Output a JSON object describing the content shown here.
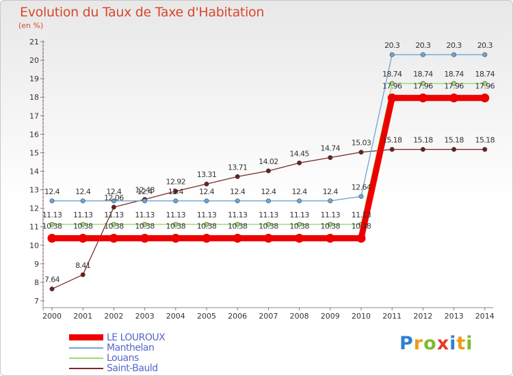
{
  "title": "Evolution du Taux de Taxe d'Habitation",
  "subtitle": "(en %)",
  "logo": {
    "letters": [
      "P",
      "r",
      "o",
      "x",
      "i",
      "t",
      "i"
    ],
    "colors": [
      "#2f7fd1",
      "#f09a17",
      "#7dbb2c",
      "#e33a2a",
      "#2f7fd1",
      "#f09a17",
      "#7dbb2c"
    ]
  },
  "chart_data": {
    "type": "line",
    "x": [
      2000,
      2001,
      2002,
      2003,
      2004,
      2005,
      2006,
      2007,
      2008,
      2009,
      2010,
      2011,
      2012,
      2013,
      2014
    ],
    "xlabel": "",
    "ylabel": "",
    "ylim": [
      7,
      21
    ],
    "yticks": [
      7,
      8,
      9,
      10,
      11,
      12,
      13,
      14,
      15,
      16,
      17,
      18,
      19,
      20,
      21
    ],
    "grid": false,
    "legend_position": "bottom-left",
    "series": [
      {
        "name": "LE LOUROUX",
        "color": "#ee0000",
        "values": [
          10.38,
          10.38,
          10.38,
          10.38,
          10.38,
          10.38,
          10.38,
          10.38,
          10.38,
          10.38,
          10.38,
          17.96,
          17.96,
          17.96,
          17.96
        ],
        "labels": [
          "10.38",
          "10.38",
          "10.38",
          "10.38",
          "10.38",
          "10.38",
          "10.38",
          "10.38",
          "10.38",
          "10.38",
          "10.38",
          "17.96",
          "17.96",
          "17.96",
          "17.96"
        ]
      },
      {
        "name": "Manthelan",
        "color": "#6aa6d8",
        "values": [
          12.4,
          12.4,
          12.4,
          12.4,
          12.4,
          12.4,
          12.4,
          12.4,
          12.4,
          12.4,
          12.64,
          20.3,
          20.3,
          20.3,
          20.3
        ],
        "labels": [
          "12.4",
          "12.4",
          "12.4",
          "12.4",
          "12.4",
          "12.4",
          "12.4",
          "12.4",
          "12.4",
          "12.4",
          "12.64",
          "20.3",
          "20.3",
          "20.3",
          "20.3"
        ]
      },
      {
        "name": "Louans",
        "color": "#99dd66",
        "values": [
          11.13,
          11.13,
          11.13,
          11.13,
          11.13,
          11.13,
          11.13,
          11.13,
          11.13,
          11.13,
          11.13,
          18.74,
          18.74,
          18.74,
          18.74
        ],
        "labels": [
          "11.13",
          "11.13",
          "11.13",
          "11.13",
          "11.13",
          "11.13",
          "11.13",
          "11.13",
          "11.13",
          "11.13",
          "11.13",
          "18.74",
          "18.74",
          "18.74",
          "18.74"
        ]
      },
      {
        "name": "Saint-Bauld",
        "color": "#7a2a2a",
        "values": [
          7.64,
          8.41,
          12.06,
          12.48,
          12.92,
          13.31,
          13.71,
          14.02,
          14.45,
          14.74,
          15.03,
          15.18,
          15.18,
          15.18,
          15.18
        ],
        "labels": [
          "7.64",
          "8.41",
          "12.06",
          "12.48",
          "12.92",
          "13.31",
          "13.71",
          "14.02",
          "14.45",
          "14.74",
          "15.03",
          "15.18",
          "15.18",
          "15.18",
          "15.18"
        ]
      }
    ]
  }
}
